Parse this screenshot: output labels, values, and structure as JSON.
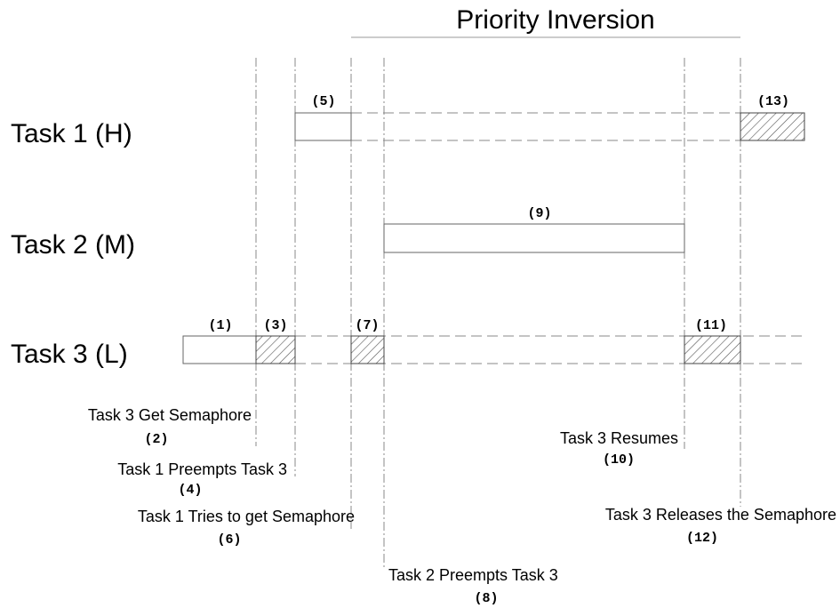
{
  "title": "Priority Inversion",
  "tasks": [
    {
      "label": "Task 1 (H)"
    },
    {
      "label": "Task 2 (M)"
    },
    {
      "label": "Task 3 (L)"
    }
  ],
  "segments": [
    {
      "label": "(1)"
    },
    {
      "label": "(3)"
    },
    {
      "label": "(5)"
    },
    {
      "label": "(7)"
    },
    {
      "label": "(9)"
    },
    {
      "label": "(11)"
    },
    {
      "label": "(13)"
    }
  ],
  "events": [
    {
      "text": "Task 3 Get Semaphore",
      "number": "(2)"
    },
    {
      "text": "Task 1 Preempts Task 3",
      "number": "(4)"
    },
    {
      "text": "Task 1 Tries to get Semaphore",
      "number": "(6)"
    },
    {
      "text": "Task 2 Preempts Task 3",
      "number": "(8)"
    },
    {
      "text": "Task 3 Resumes",
      "number": "(10)"
    },
    {
      "text": "Task 3 Releases the Semaphore",
      "number": "(12)"
    }
  ]
}
